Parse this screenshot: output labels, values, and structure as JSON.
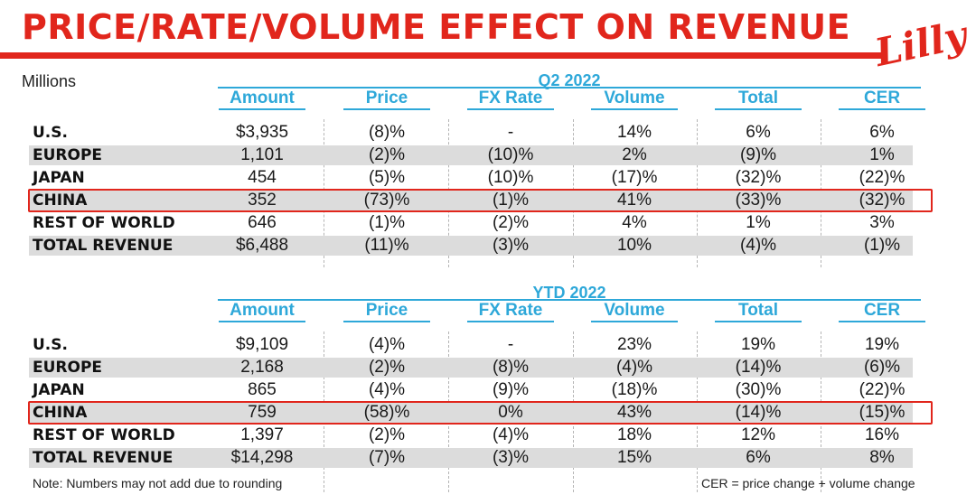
{
  "header": {
    "title": "PRICE/RATE/VOLUME EFFECT ON REVENUE",
    "logo_text": "Lilly",
    "units_label": "Millions"
  },
  "columns": [
    "Amount",
    "Price",
    "FX Rate",
    "Volume",
    "Total",
    "CER"
  ],
  "highlight_color": "#e1261c",
  "accent_color": "#2ea8d9",
  "tables": [
    {
      "period": "Q2 2022",
      "highlighted_row": "CHINA",
      "rows": [
        {
          "label": "U.S.",
          "values": [
            "$3,935",
            "(8)%",
            "-",
            "14%",
            "6%",
            "6%"
          ]
        },
        {
          "label": "EUROPE",
          "values": [
            "1,101",
            "(2)%",
            "(10)%",
            "2%",
            "(9)%",
            "1%"
          ]
        },
        {
          "label": "JAPAN",
          "values": [
            "454",
            "(5)%",
            "(10)%",
            "(17)%",
            "(32)%",
            "(22)%"
          ]
        },
        {
          "label": "CHINA",
          "values": [
            "352",
            "(73)%",
            "(1)%",
            "41%",
            "(33)%",
            "(32)%"
          ]
        },
        {
          "label": "REST OF WORLD",
          "values": [
            "646",
            "(1)%",
            "(2)%",
            "4%",
            "1%",
            "3%"
          ]
        },
        {
          "label": "TOTAL REVENUE",
          "values": [
            "$6,488",
            "(11)%",
            "(3)%",
            "10%",
            "(4)%",
            "(1)%"
          ]
        }
      ]
    },
    {
      "period": "YTD 2022",
      "highlighted_row": "CHINA",
      "rows": [
        {
          "label": "U.S.",
          "values": [
            "$9,109",
            "(4)%",
            "-",
            "23%",
            "19%",
            "19%"
          ]
        },
        {
          "label": "EUROPE",
          "values": [
            "2,168",
            "(2)%",
            "(8)%",
            "(4)%",
            "(14)%",
            "(6)%"
          ]
        },
        {
          "label": "JAPAN",
          "values": [
            "865",
            "(4)%",
            "(9)%",
            "(18)%",
            "(30)%",
            "(22)%"
          ]
        },
        {
          "label": "CHINA",
          "values": [
            "759",
            "(58)%",
            "0%",
            "43%",
            "(14)%",
            "(15)%"
          ]
        },
        {
          "label": "REST OF WORLD",
          "values": [
            "1,397",
            "(2)%",
            "(4)%",
            "18%",
            "12%",
            "16%"
          ]
        },
        {
          "label": "TOTAL REVENUE",
          "values": [
            "$14,298",
            "(7)%",
            "(3)%",
            "15%",
            "6%",
            "8%"
          ]
        }
      ]
    }
  ],
  "footer": {
    "note_left": "Note: Numbers may not add due to rounding",
    "note_right": "CER = price change + volume change"
  }
}
